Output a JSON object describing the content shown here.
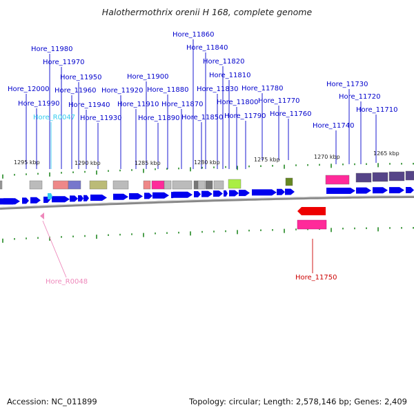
{
  "title": "Halothermothrix orenii H 168, complete genome",
  "footer": {
    "accession": "Accession: NC_011899",
    "summary": "Topology: circular; Length: 2,578,146 bp; Genes: 2,409"
  },
  "colors": {
    "gene_label": "#0000cc",
    "rna_label": "#33ccee",
    "rna_label_pink": "#ee88bb",
    "highlight_label": "#cc0000",
    "cds_blue": "#0000ee",
    "cds_red": "#ee0000",
    "tick_green": "#228822",
    "pink_box": "#ff2a9a"
  },
  "scale_labels": [
    "1295 kbp",
    "1290 kbp",
    "1285 kbp",
    "1280 kbp",
    "1275 kbp",
    "1270 kbp",
    "1265 kbp"
  ],
  "gene_labels": [
    "Hore_11980",
    "Hore_11970",
    "Hore_12000",
    "Hore_11990",
    "Hore_R0047",
    "Hore_11960",
    "Hore_11950",
    "Hore_11940",
    "Hore_11930",
    "Hore_11920",
    "Hore_11900",
    "Hore_11910",
    "Hore_11880",
    "Hore_11890",
    "Hore_11870",
    "Hore_11860",
    "Hore_11840",
    "Hore_11820",
    "Hore_11810",
    "Hore_11830",
    "Hore_11850",
    "Hore_11800",
    "Hore_11790",
    "Hore_11780",
    "Hore_11770",
    "Hore_11760",
    "Hore_11730",
    "Hore_11720",
    "Hore_11740",
    "Hore_11710",
    "Hore_R0048",
    "Hore_11750"
  ]
}
